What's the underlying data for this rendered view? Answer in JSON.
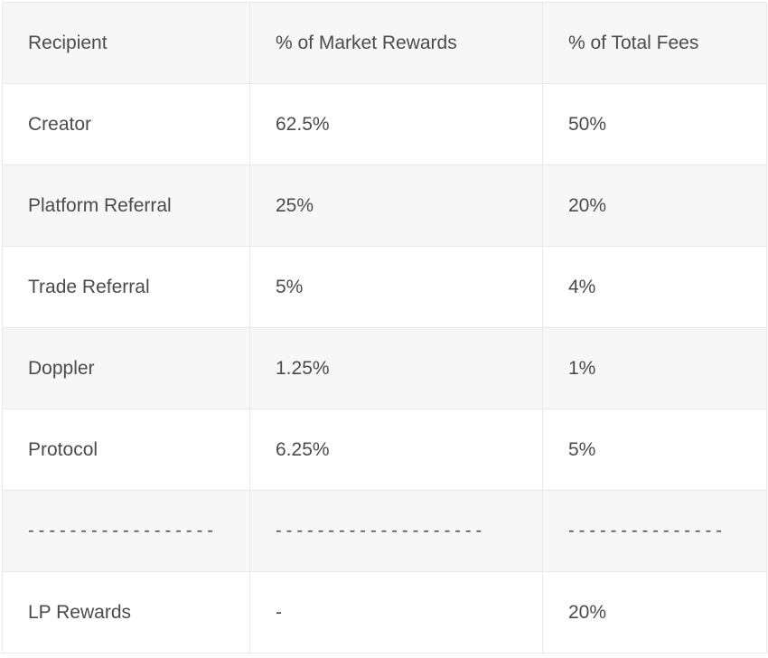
{
  "table": {
    "columns": [
      {
        "label": "Recipient"
      },
      {
        "label": "% of Market Rewards"
      },
      {
        "label": "% of Total Fees"
      }
    ],
    "rows": [
      {
        "cells": [
          "Creator",
          "62.5%",
          "50%"
        ]
      },
      {
        "cells": [
          "Platform Referral",
          "25%",
          "20%"
        ]
      },
      {
        "cells": [
          "Trade Referral",
          "5%",
          "4%"
        ]
      },
      {
        "cells": [
          "Doppler",
          "1.25%",
          "1%"
        ]
      },
      {
        "cells": [
          "Protocol",
          "6.25%",
          "5%"
        ]
      },
      {
        "cells": [
          "------------------",
          "--------------------",
          "---------------"
        ]
      },
      {
        "cells": [
          "LP Rewards",
          "-",
          "20%"
        ]
      }
    ],
    "colors": {
      "stripe_bg": "#f7f7f8",
      "row_bg": "#ffffff",
      "border": "#e9e9eb",
      "text": "#4b4b4b"
    }
  }
}
